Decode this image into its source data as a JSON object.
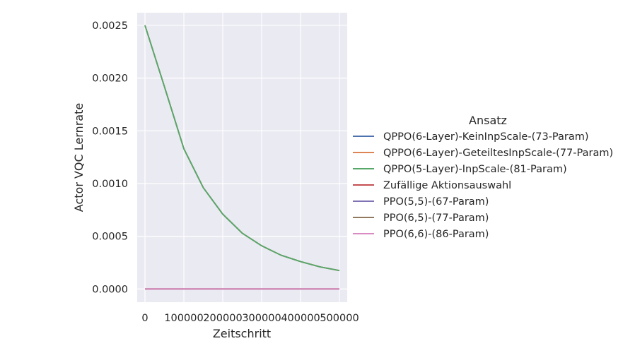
{
  "chart_data": {
    "type": "line",
    "xlabel": "Zeitschritt",
    "ylabel": "Actor VQC Lernrate",
    "xlim": [
      -20000,
      520000
    ],
    "ylim": [
      -0.000125,
      0.00262
    ],
    "xticks": [
      0,
      100000,
      200000,
      300000,
      400000,
      500000
    ],
    "xtick_labels": [
      "0",
      "100000",
      "200000",
      "300000",
      "400000",
      "500000"
    ],
    "yticks": [
      0,
      0.0005,
      0.001,
      0.0015,
      0.002,
      0.0025
    ],
    "ytick_labels": [
      "0.0000",
      "0.0005",
      "0.0010",
      "0.0015",
      "0.0020",
      "0.0025"
    ],
    "grid": true,
    "legend": {
      "title": "Ansatz",
      "placement": "right"
    },
    "series": [
      {
        "name": "QPPO(6-Layer)-KeinInpScale-(73-Param)",
        "color": "#4c72b0",
        "x": [
          0,
          50000,
          100000,
          150000,
          200000,
          250000,
          300000,
          350000,
          400000,
          450000,
          500000
        ],
        "y": [
          0.0025,
          0.00192,
          0.00133,
          0.00096,
          0.00071,
          0.00053,
          0.00041,
          0.00032,
          0.00026,
          0.00021,
          0.000175
        ]
      },
      {
        "name": "QPPO(6-Layer)-GeteiltesInpScale-(77-Param)",
        "color": "#dd8452",
        "x": [
          0,
          50000,
          100000,
          150000,
          200000,
          250000,
          300000,
          350000,
          400000,
          450000,
          500000
        ],
        "y": [
          0.0025,
          0.00192,
          0.00133,
          0.00096,
          0.00071,
          0.00053,
          0.00041,
          0.00032,
          0.00026,
          0.00021,
          0.000175
        ]
      },
      {
        "name": "QPPO(5-Layer)-InpScale-(81-Param)",
        "color": "#55a868",
        "x": [
          0,
          50000,
          100000,
          150000,
          200000,
          250000,
          300000,
          350000,
          400000,
          450000,
          500000
        ],
        "y": [
          0.0025,
          0.00192,
          0.00133,
          0.00096,
          0.00071,
          0.00053,
          0.00041,
          0.00032,
          0.00026,
          0.00021,
          0.000175
        ]
      },
      {
        "name": "Zufällige Aktionsauswahl",
        "color": "#c44e52",
        "x": [
          0,
          500000
        ],
        "y": [
          0,
          0
        ]
      },
      {
        "name": "PPO(5,5)-(67-Param)",
        "color": "#8172b3",
        "x": [
          0,
          500000
        ],
        "y": [
          0,
          0
        ]
      },
      {
        "name": "PPO(6,5)-(77-Param)",
        "color": "#937860",
        "x": [
          0,
          500000
        ],
        "y": [
          0,
          0
        ]
      },
      {
        "name": "PPO(6,6)-(86-Param)",
        "color": "#da8bc3",
        "x": [
          0,
          500000
        ],
        "y": [
          0,
          0
        ]
      }
    ]
  }
}
